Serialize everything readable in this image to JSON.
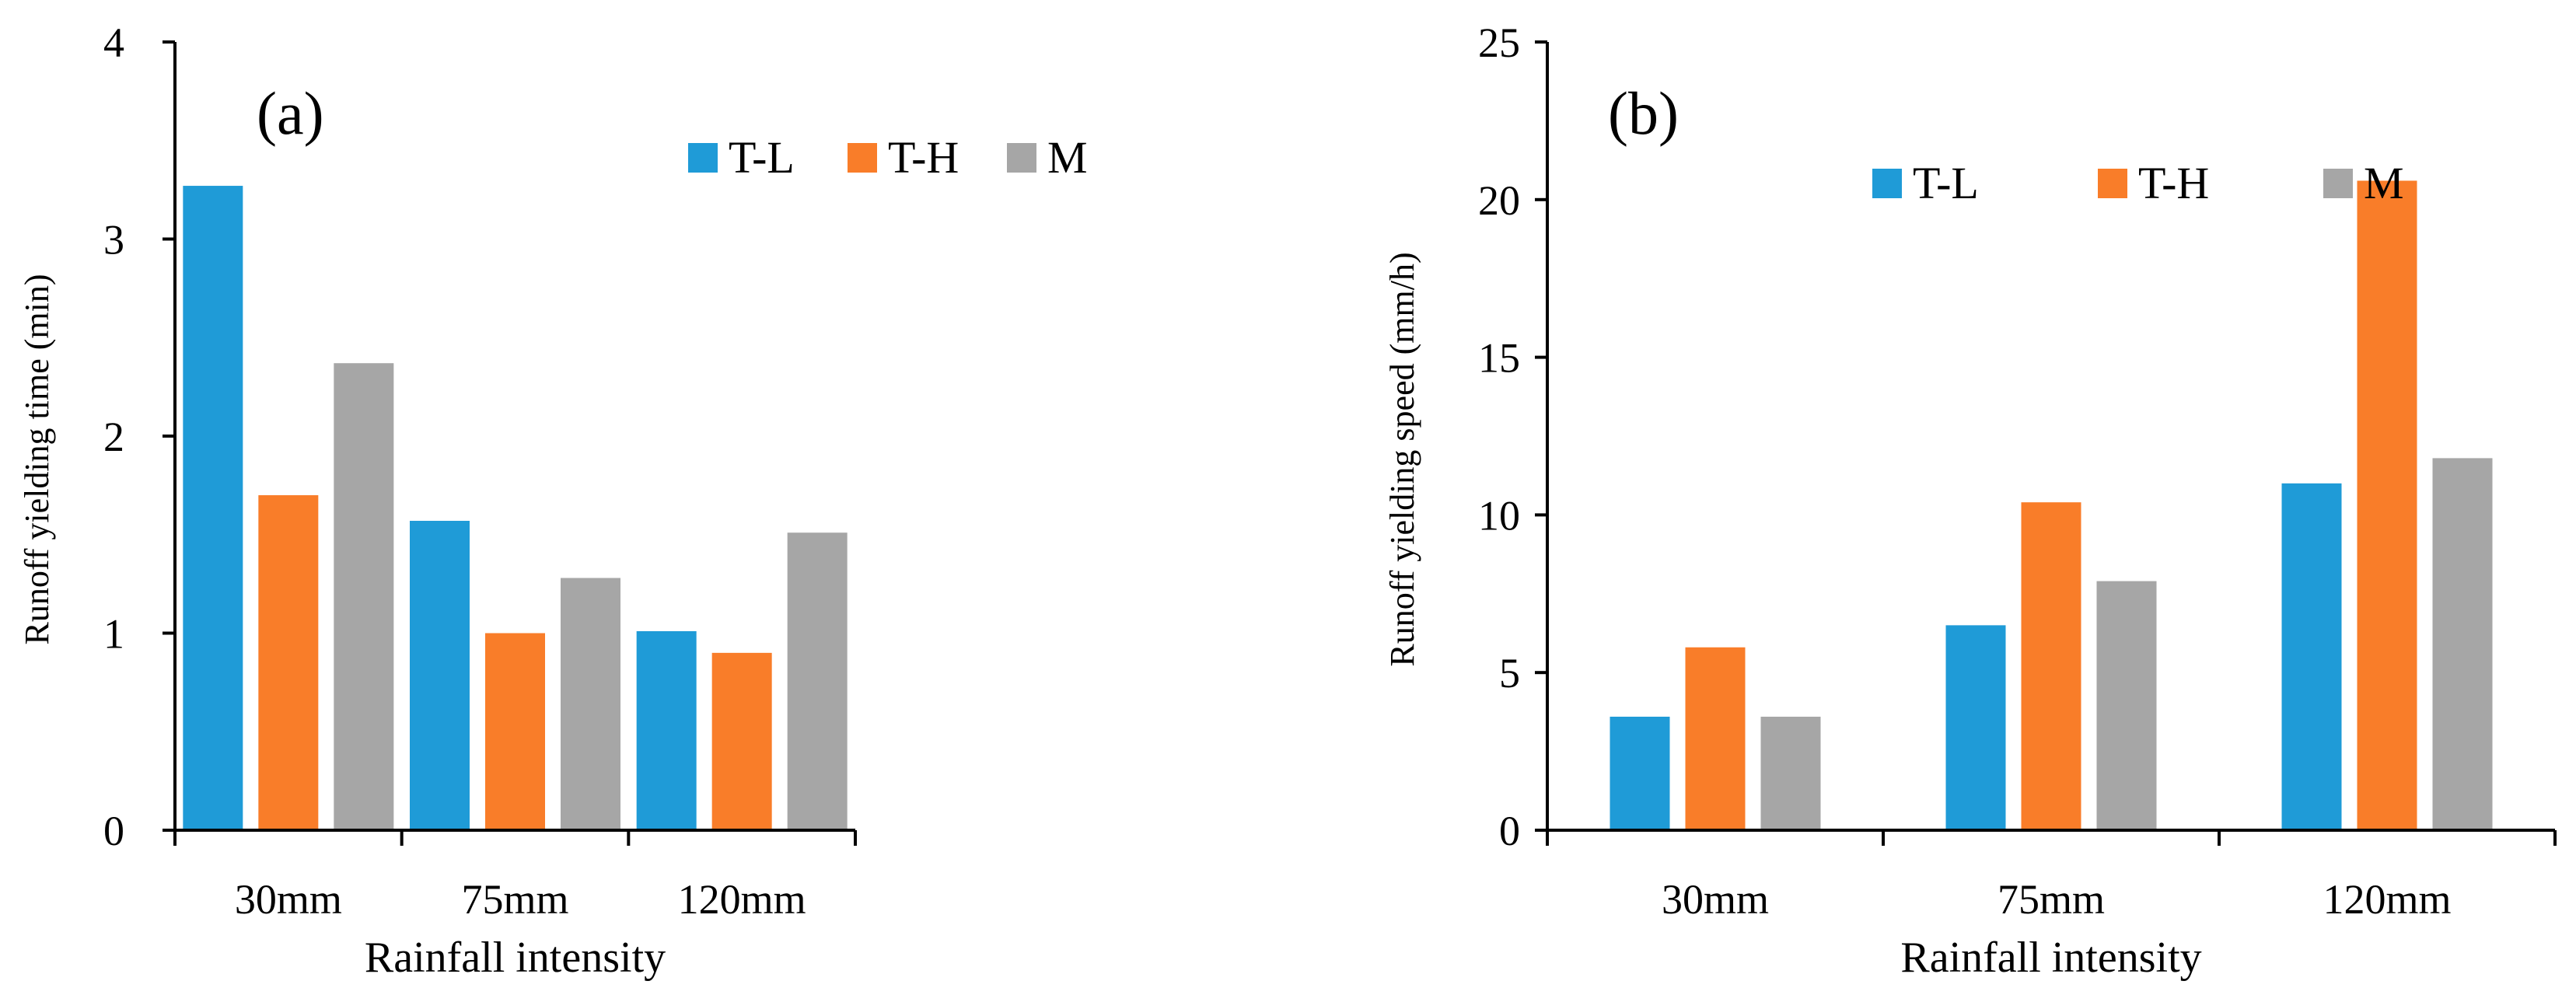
{
  "chart_data": [
    {
      "type": "bar",
      "panel_label": "(a)",
      "categories": [
        "30mm",
        "75mm",
        "120mm"
      ],
      "series": [
        {
          "name": "T-L",
          "color": "#1F9BD7",
          "values": [
            3.27,
            1.57,
            1.01
          ]
        },
        {
          "name": "T-H",
          "color": "#F97D29",
          "values": [
            1.7,
            1.0,
            0.9
          ]
        },
        {
          "name": "M",
          "color": "#A6A6A6",
          "values": [
            2.37,
            1.28,
            1.51
          ]
        }
      ],
      "xlabel": "Rainfall intensity",
      "ylabel": "Runoff yielding time (min)",
      "ylim": [
        0,
        4
      ],
      "yticks": [
        0,
        1,
        2,
        3,
        4
      ],
      "grid": false,
      "legend_position": "top-right"
    },
    {
      "type": "bar",
      "panel_label": "(b)",
      "categories": [
        "30mm",
        "75mm",
        "120mm"
      ],
      "series": [
        {
          "name": "T-L",
          "color": "#1F9BD7",
          "values": [
            3.6,
            6.5,
            11.0
          ]
        },
        {
          "name": "T-H",
          "color": "#F97D29",
          "values": [
            5.8,
            10.4,
            20.6
          ]
        },
        {
          "name": "M",
          "color": "#A6A6A6",
          "values": [
            3.6,
            7.9,
            11.8
          ]
        }
      ],
      "xlabel": "Rainfall intensity",
      "ylabel": "Runoff yielding speed (mm/h)",
      "ylim": [
        0,
        25
      ],
      "yticks": [
        0,
        5,
        10,
        15,
        20,
        25
      ],
      "grid": false,
      "legend_position": "top-right"
    }
  ]
}
